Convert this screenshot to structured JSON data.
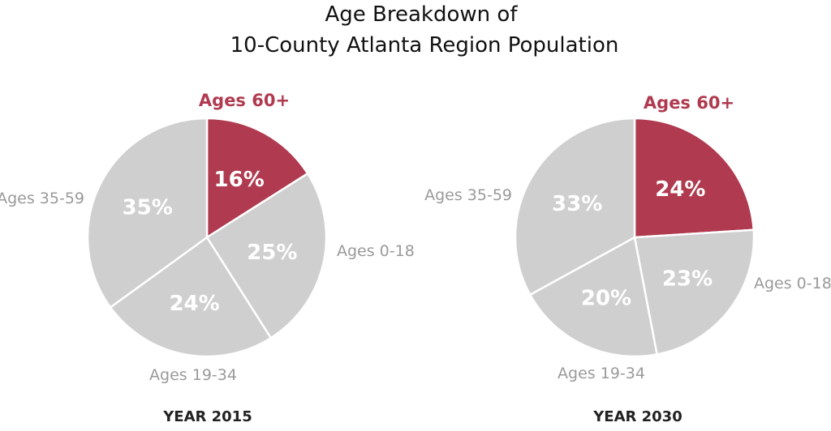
{
  "chart_data": {
    "type": "pie",
    "title": [
      "Age Breakdown of",
      "10-County Atlanta Region Population"
    ],
    "colors": {
      "highlight": "#b03a4f",
      "base": "#cfcfcf",
      "separator": "#ffffff"
    },
    "charts": [
      {
        "year_label": "YEAR 2015",
        "slices": [
          {
            "label": "Ages 60+",
            "value": 16,
            "pct_label": "16%",
            "highlight": true
          },
          {
            "label": "Ages 0-18",
            "value": 25,
            "pct_label": "25%",
            "highlight": false
          },
          {
            "label": "Ages 19-34",
            "value": 24,
            "pct_label": "24%",
            "highlight": false
          },
          {
            "label": "Ages 35-59",
            "value": 35,
            "pct_label": "35%",
            "highlight": false
          }
        ]
      },
      {
        "year_label": "YEAR 2030",
        "slices": [
          {
            "label": "Ages 60+",
            "value": 24,
            "pct_label": "24%",
            "highlight": true
          },
          {
            "label": "Ages 0-18",
            "value": 23,
            "pct_label": "23%",
            "highlight": false
          },
          {
            "label": "Ages 19-34",
            "value": 20,
            "pct_label": "20%",
            "highlight": false
          },
          {
            "label": "Ages 35-59",
            "value": 33,
            "pct_label": "33%",
            "highlight": false
          }
        ]
      }
    ]
  }
}
